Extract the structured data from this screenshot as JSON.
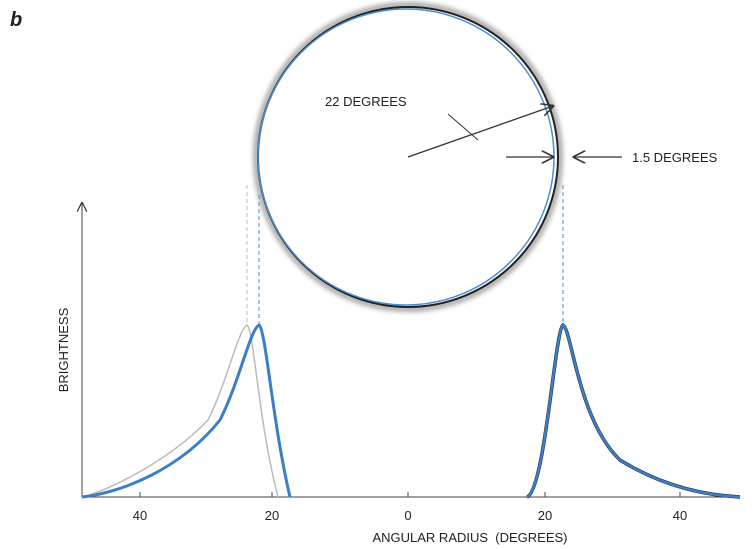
{
  "panel_label": "b",
  "annotations": {
    "radius": "22 DEGREES",
    "width": "1.5 DEGREES"
  },
  "y_axis_label": "BRIGHTNESS",
  "x_axis": {
    "title": "ANGULAR RADIUS  (DEGREES)",
    "ticks": [
      "40",
      "20",
      "0",
      "20",
      "40"
    ]
  }
}
